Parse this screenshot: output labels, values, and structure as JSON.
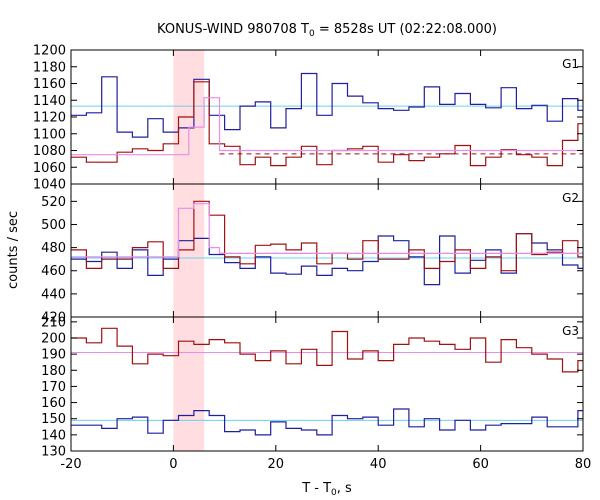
{
  "chart_data": {
    "type": "line",
    "title": {
      "main": "KONUS-WIND 980708 T",
      "sub": "0",
      "rest": " = 8528s UT (02:22:08.000)"
    },
    "xlabel": {
      "main": "T - T",
      "sub": "0",
      "rest": ", s"
    },
    "ylabel": "counts / sec",
    "xlim": [
      -20,
      80
    ],
    "xticks": [
      -20,
      0,
      20,
      40,
      60,
      80
    ],
    "highlight_interval": [
      0,
      6
    ],
    "colors": {
      "highlight": "#ffdde0",
      "blue_series": "#1f1fa0",
      "red_series": "#a01010",
      "cyan_line": "#6ad2ee",
      "pink_line": "#e88ee8",
      "dashed_line": "#a01010"
    },
    "panels": [
      {
        "label": "G1",
        "ylim": [
          1040,
          1200
        ],
        "yticks": [
          1040,
          1060,
          1080,
          1100,
          1120,
          1140,
          1160,
          1180,
          1200
        ],
        "step_series": [
          {
            "color": "blue_series",
            "x": [
              -20,
              -17,
              -14,
              -11,
              -8,
              -5,
              -2,
              1,
              4,
              7,
              10,
              13,
              16,
              19,
              22,
              25,
              28,
              31,
              34,
              37,
              40,
              43,
              46,
              49,
              52,
              55,
              58,
              61,
              64,
              67,
              70,
              73,
              76,
              79,
              80
            ],
            "y": [
              1122,
              1125,
              1168,
              1102,
              1096,
              1118,
              1102,
              1107,
              1165,
              1122,
              1105,
              1133,
              1138,
              1107,
              1130,
              1172,
              1122,
              1160,
              1145,
              1137,
              1130,
              1128,
              1132,
              1156,
              1135,
              1148,
              1135,
              1131,
              1155,
              1130,
              1134,
              1115,
              1142,
              1128,
              1128
            ]
          },
          {
            "color": "red_series",
            "x": [
              -20,
              -17,
              -14,
              -11,
              -8,
              -5,
              -2,
              1,
              4,
              7,
              10,
              13,
              16,
              19,
              22,
              25,
              28,
              31,
              34,
              37,
              40,
              43,
              46,
              49,
              52,
              55,
              58,
              61,
              64,
              67,
              70,
              73,
              76,
              79,
              80
            ],
            "y": [
              1072,
              1066,
              1066,
              1078,
              1082,
              1080,
              1088,
              1120,
              1162,
              1088,
              1085,
              1063,
              1072,
              1062,
              1072,
              1085,
              1063,
              1080,
              1082,
              1085,
              1066,
              1075,
              1068,
              1072,
              1076,
              1086,
              1062,
              1072,
              1081,
              1075,
              1072,
              1062,
              1092,
              1112,
              1120
            ]
          },
          {
            "color": "pink_line",
            "x": [
              -20,
              0,
              3,
              6,
              9,
              80
            ],
            "y": [
              1075,
              1075,
              1108,
              1143,
              1080,
              1082
            ]
          }
        ],
        "hlines": [
          {
            "y": 1133,
            "color": "cyan_line",
            "dashed": false,
            "from": -20,
            "to": 80
          },
          {
            "y": 1076,
            "color": "dashed_line",
            "dashed": true,
            "from": 9,
            "to": 80
          }
        ]
      },
      {
        "label": "G2",
        "ylim": [
          420,
          535
        ],
        "yticks": [
          420,
          440,
          460,
          480,
          500,
          520
        ],
        "step_series": [
          {
            "color": "blue_series",
            "x": [
              -20,
              -17,
              -14,
              -11,
              -8,
              -5,
              -2,
              1,
              4,
              7,
              10,
              13,
              16,
              19,
              22,
              25,
              28,
              31,
              34,
              37,
              40,
              43,
              46,
              49,
              52,
              55,
              58,
              61,
              64,
              67,
              70,
              73,
              76,
              79,
              80
            ],
            "y": [
              470,
              468,
              476,
              462,
              478,
              456,
              470,
              486,
              488,
              474,
              467,
              462,
              472,
              458,
              457,
              464,
              456,
              462,
              460,
              468,
              490,
              486,
              472,
              448,
              490,
              458,
              469,
              478,
              458,
              492,
              484,
              478,
              465,
              462,
              460
            ]
          },
          {
            "color": "red_series",
            "x": [
              -20,
              -17,
              -14,
              -11,
              -8,
              -5,
              -2,
              1,
              4,
              7,
              10,
              13,
              16,
              19,
              22,
              25,
              28,
              31,
              34,
              37,
              40,
              43,
              46,
              49,
              52,
              55,
              58,
              61,
              64,
              67,
              70,
              73,
              76,
              79,
              80
            ],
            "y": [
              478,
              462,
              470,
              470,
              480,
              485,
              462,
              478,
              520,
              508,
              472,
              466,
              482,
              483,
              478,
              484,
              466,
              475,
              470,
              486,
              470,
              470,
              478,
              462,
              468,
              478,
              462,
              472,
              460,
              492,
              474,
              476,
              486,
              472,
              470
            ]
          },
          {
            "color": "pink_line",
            "x": [
              -20,
              0,
              1,
              4,
              7,
              9,
              80
            ],
            "y": [
              472,
              472,
              514,
              518,
              480,
              475,
              475
            ]
          }
        ],
        "hlines": [
          {
            "y": 471,
            "color": "cyan_line",
            "dashed": false,
            "from": -20,
            "to": 80
          },
          {
            "y": 475,
            "color": "dashed_line",
            "dashed": true,
            "from": 9,
            "to": 80
          }
        ]
      },
      {
        "label": "G3",
        "ylim": [
          130,
          213
        ],
        "yticks": [
          130,
          140,
          150,
          160,
          170,
          180,
          190,
          200,
          210
        ],
        "step_series": [
          {
            "color": "blue_series",
            "x": [
              -20,
              -17,
              -14,
              -11,
              -8,
              -5,
              -2,
              1,
              4,
              7,
              10,
              13,
              16,
              19,
              22,
              25,
              28,
              31,
              34,
              37,
              40,
              43,
              46,
              49,
              52,
              55,
              58,
              61,
              64,
              67,
              70,
              73,
              76,
              79,
              80
            ],
            "y": [
              146,
              146,
              144,
              150,
              151,
              141,
              149,
              152,
              155,
              152,
              142,
              143,
              140,
              148,
              144,
              143,
              140,
              152,
              150,
              151,
              146,
              156,
              145,
              150,
              143,
              149,
              143,
              146,
              147,
              147,
              151,
              145,
              145,
              155,
              148
            ]
          },
          {
            "color": "red_series",
            "x": [
              -20,
              -17,
              -14,
              -11,
              -8,
              -5,
              -2,
              1,
              4,
              7,
              10,
              13,
              16,
              19,
              22,
              25,
              28,
              31,
              34,
              37,
              40,
              43,
              46,
              49,
              52,
              55,
              58,
              61,
              64,
              67,
              70,
              73,
              76,
              79,
              80
            ],
            "y": [
              200,
              197,
              206,
              195,
              184,
              190,
              189,
              198,
              196,
              199,
              197,
              190,
              186,
              192,
              184,
              193,
              183,
              204,
              187,
              192,
              186,
              196,
              200,
              198,
              196,
              193,
              200,
              185,
              199,
              194,
              190,
              187,
              179,
              186,
              185
            ]
          }
        ],
        "hlines": [
          {
            "y": 191,
            "color": "pink_line",
            "dashed": false,
            "from": -20,
            "to": 80
          },
          {
            "y": 149,
            "color": "cyan_line",
            "dashed": false,
            "from": -20,
            "to": 80
          }
        ]
      }
    ]
  }
}
